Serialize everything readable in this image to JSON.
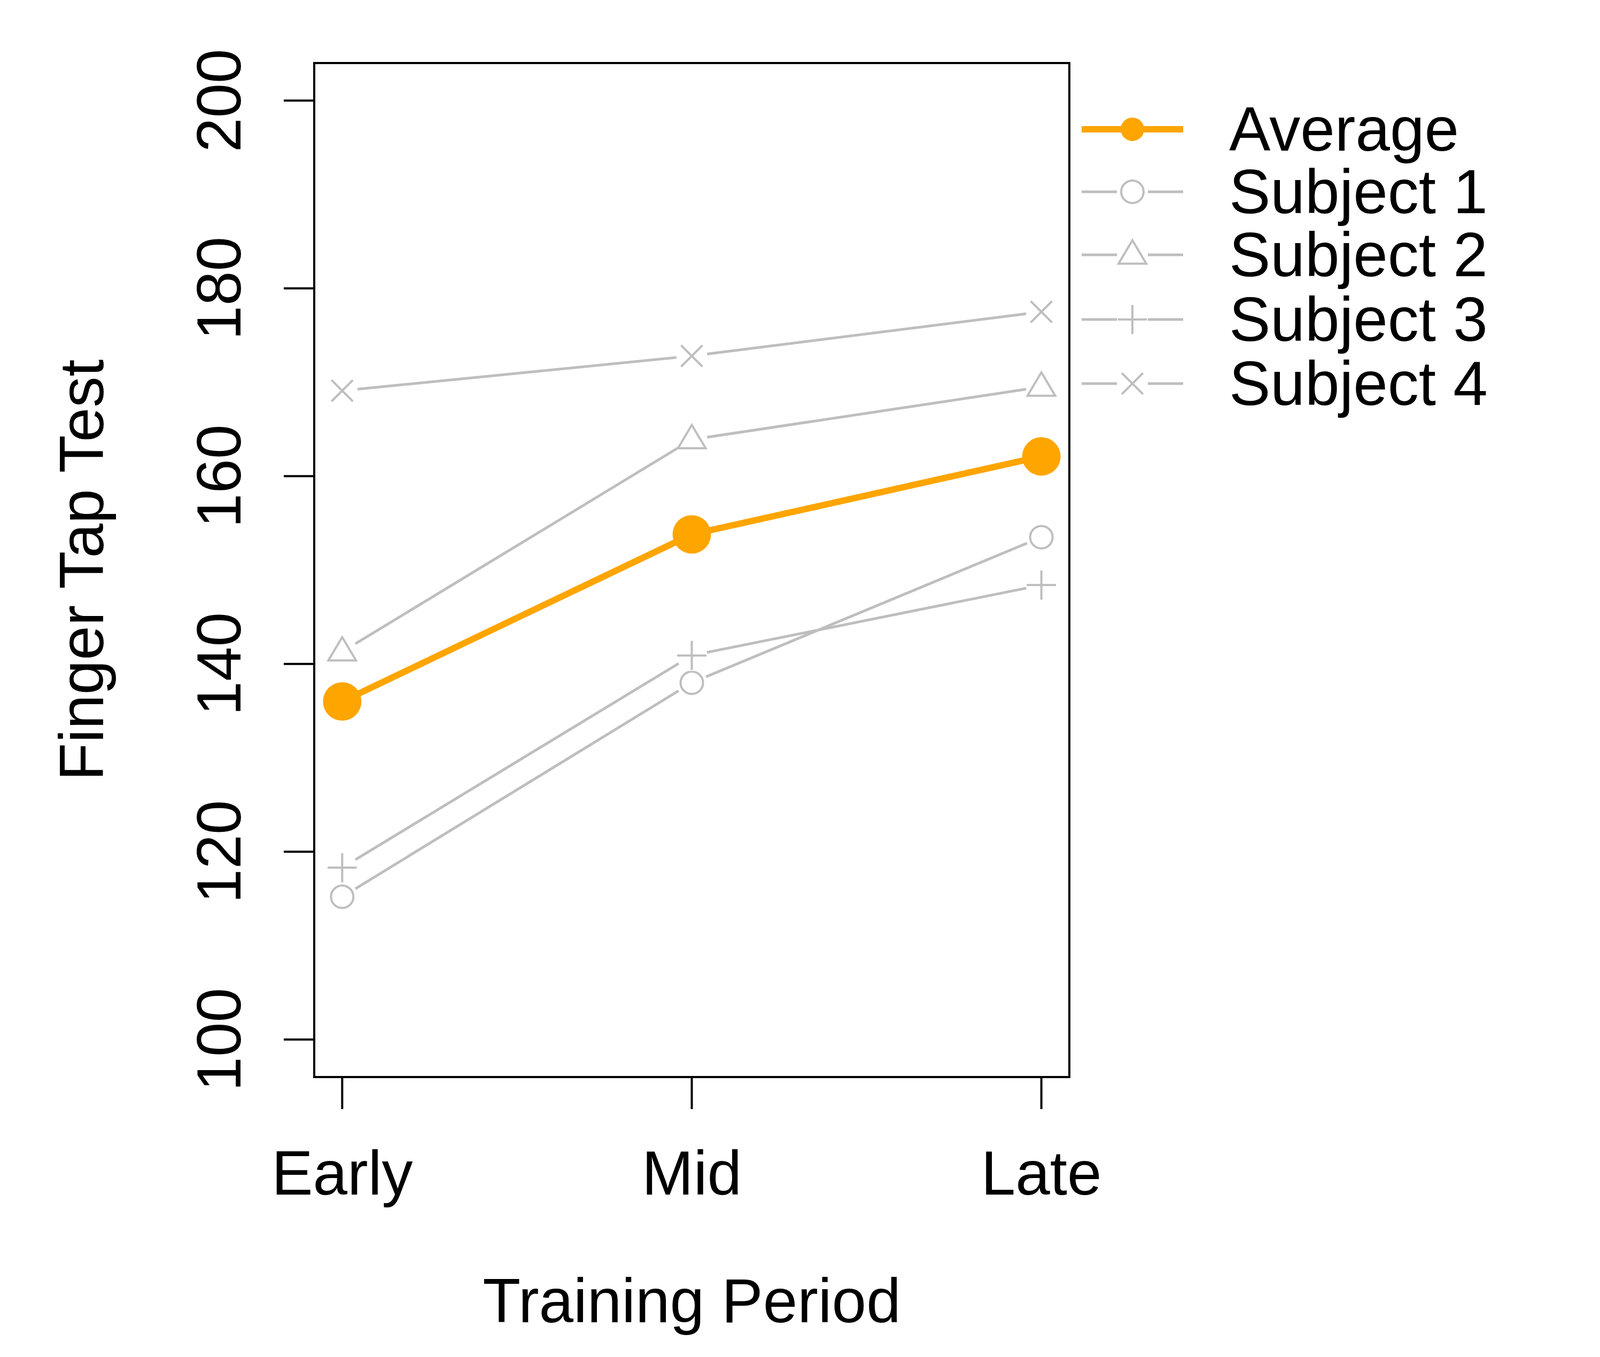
{
  "chart_data": {
    "type": "line",
    "x_label": "Training Period",
    "y_label": "Finger Tap Test",
    "categories": [
      "Early",
      "Mid",
      "Late"
    ],
    "ylim": [
      96,
      204
    ],
    "yticks": [
      100,
      120,
      140,
      160,
      180,
      200
    ],
    "grid": false,
    "legend": "outside-top-right",
    "series": [
      {
        "name": "Average",
        "color": "#ffa500",
        "marker": "dot",
        "line_style": "solid",
        "values": [
          136,
          153.8,
          162.1
        ]
      },
      {
        "name": "Subject 1",
        "color": "#bebebe",
        "marker": "circle",
        "line_style": "solid",
        "values": [
          115.2,
          138,
          153.5
        ]
      },
      {
        "name": "Subject 2",
        "color": "#bebebe",
        "marker": "triangle",
        "line_style": "solid",
        "values": [
          141.3,
          163.9,
          169.5
        ]
      },
      {
        "name": "Subject 3",
        "color": "#bebebe",
        "marker": "plus",
        "line_style": "solid",
        "values": [
          118.3,
          140.9,
          148.4
        ]
      },
      {
        "name": "Subject 4",
        "color": "#bebebe",
        "marker": "cross",
        "line_style": "solid",
        "values": [
          169.1,
          172.8,
          177.5
        ]
      }
    ]
  }
}
